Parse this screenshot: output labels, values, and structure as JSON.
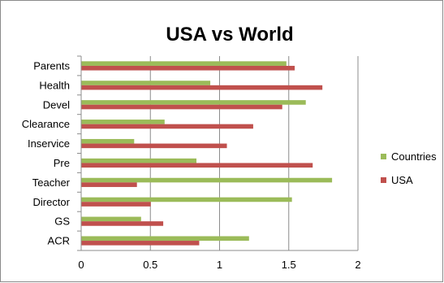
{
  "chart_data": {
    "type": "bar",
    "orientation": "horizontal",
    "title": "USA vs World",
    "categories": [
      "Parents",
      "Health",
      "Devel",
      "Clearance",
      "Inservice",
      "Pre",
      "Teacher",
      "Director",
      "GS",
      "ACR"
    ],
    "series": [
      {
        "name": "Countries",
        "color": "#9BBB59",
        "values": [
          1.48,
          0.93,
          1.62,
          0.6,
          0.38,
          0.83,
          1.81,
          1.52,
          0.43,
          1.21
        ]
      },
      {
        "name": "USA",
        "color": "#C0504D",
        "values": [
          1.54,
          1.74,
          1.45,
          1.24,
          1.05,
          1.67,
          0.4,
          0.5,
          0.59,
          0.85
        ]
      }
    ],
    "xlim": [
      0,
      2
    ],
    "x_ticks": [
      "0",
      "0.5",
      "1",
      "1.5",
      "2"
    ],
    "xlabel": "",
    "ylabel": "",
    "grid": "vertical",
    "legend_position": "right"
  }
}
